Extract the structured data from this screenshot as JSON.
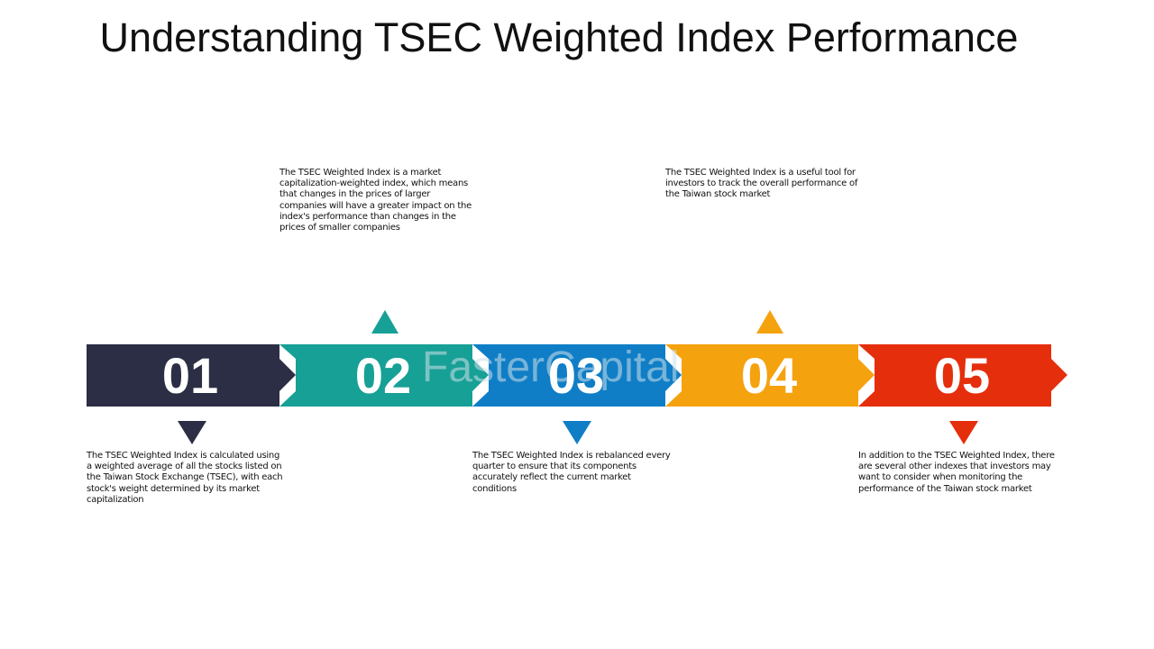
{
  "title": "Understanding TSEC Weighted Index Performance",
  "watermark": {
    "text": "FasterCapital",
    "color": "#cfe0ea"
  },
  "steps": [
    {
      "number": "01",
      "color": "#2c2e45",
      "pointer": "down",
      "description": "The TSEC Weighted Index is calculated using a weighted average of all the stocks listed on the Taiwan Stock Exchange (TSEC), with each stock's weight determined by its market capitalization"
    },
    {
      "number": "02",
      "color": "#17a096",
      "pointer": "up",
      "description": "The TSEC Weighted Index is a market capitalization-weighted index, which means that changes in the prices of larger companies will have a greater impact on the index's performance than changes in the prices of smaller companies"
    },
    {
      "number": "03",
      "color": "#0f7ec6",
      "pointer": "down",
      "description": "The TSEC Weighted Index is rebalanced every quarter to ensure that its components accurately reflect the current market conditions"
    },
    {
      "number": "04",
      "color": "#f5a20f",
      "pointer": "up",
      "description": "The TSEC Weighted Index is a useful tool for investors to track the overall performance of the Taiwan stock market"
    },
    {
      "number": "05",
      "color": "#e52e0c",
      "pointer": "down",
      "description": "In addition to the TSEC Weighted Index, there are several other indexes that investors may want to consider when monitoring the performance of the Taiwan stock market"
    }
  ]
}
